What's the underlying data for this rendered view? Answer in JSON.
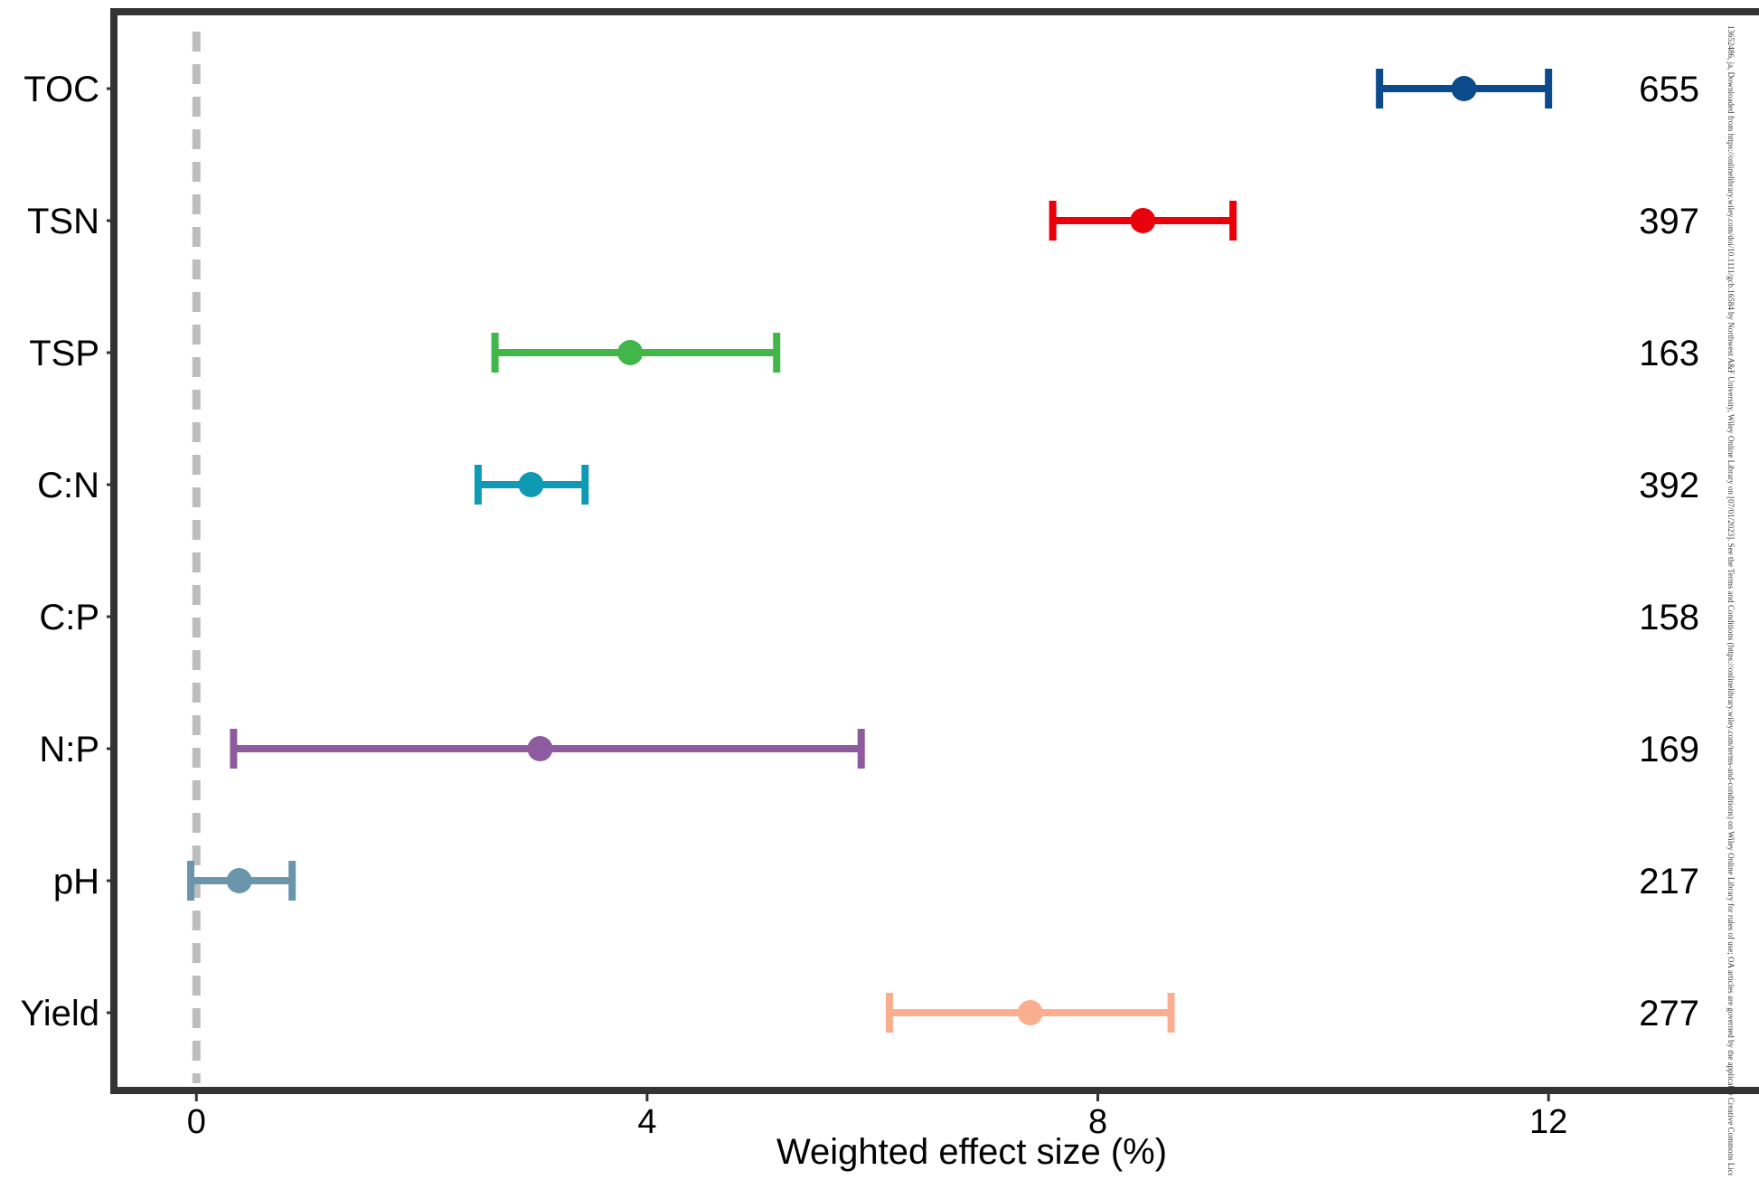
{
  "chart_data": {
    "type": "forest",
    "xlabel": "Weighted effect size (%)",
    "xlim": [
      -0.7,
      13.9
    ],
    "xticks": [
      0,
      4,
      8,
      12
    ],
    "xtick_labels": [
      "0",
      "4",
      "8",
      "12"
    ],
    "reference_line": 0,
    "grid": false,
    "legend": "none",
    "rows": [
      {
        "label": "TOC",
        "mean": 11.25,
        "lower": 10.5,
        "upper": 12.0,
        "n": "655",
        "color": "#0d4a8c"
      },
      {
        "label": "TSN",
        "mean": 8.4,
        "lower": 7.6,
        "upper": 9.2,
        "n": "397",
        "color": "#e8000b"
      },
      {
        "label": "TSP",
        "mean": 3.85,
        "lower": 2.65,
        "upper": 5.15,
        "n": "163",
        "color": "#42b649"
      },
      {
        "label": "C:N",
        "mean": 2.97,
        "lower": 2.5,
        "upper": 3.45,
        "n": "392",
        "color": "#0f9ab3"
      },
      {
        "label": "C:P",
        "mean": null,
        "lower": null,
        "upper": null,
        "n": "158",
        "color": "#999999"
      },
      {
        "label": "N:P",
        "mean": 3.05,
        "lower": 0.33,
        "upper": 5.9,
        "n": "169",
        "color": "#8e5c9e"
      },
      {
        "label": "pH",
        "mean": 0.38,
        "lower": -0.05,
        "upper": 0.85,
        "n": "217",
        "color": "#6b95aa"
      },
      {
        "label": "Yield",
        "mean": 7.4,
        "lower": 6.15,
        "upper": 8.65,
        "n": "277",
        "color": "#f9ae8f"
      }
    ]
  },
  "side_note": "13652486, ja, Downloaded from https://onlinelibrary.wiley.com/doi/10.1111/gcb.16584 by Northwest A&F University, Wiley Online Library on [07/01/2023]. See the Terms and Conditions (https://onlinelibrary.wiley.com/terms-and-conditions) on Wiley Online Library for rules of use; OA articles are governed by the applicable Creative Commons License"
}
